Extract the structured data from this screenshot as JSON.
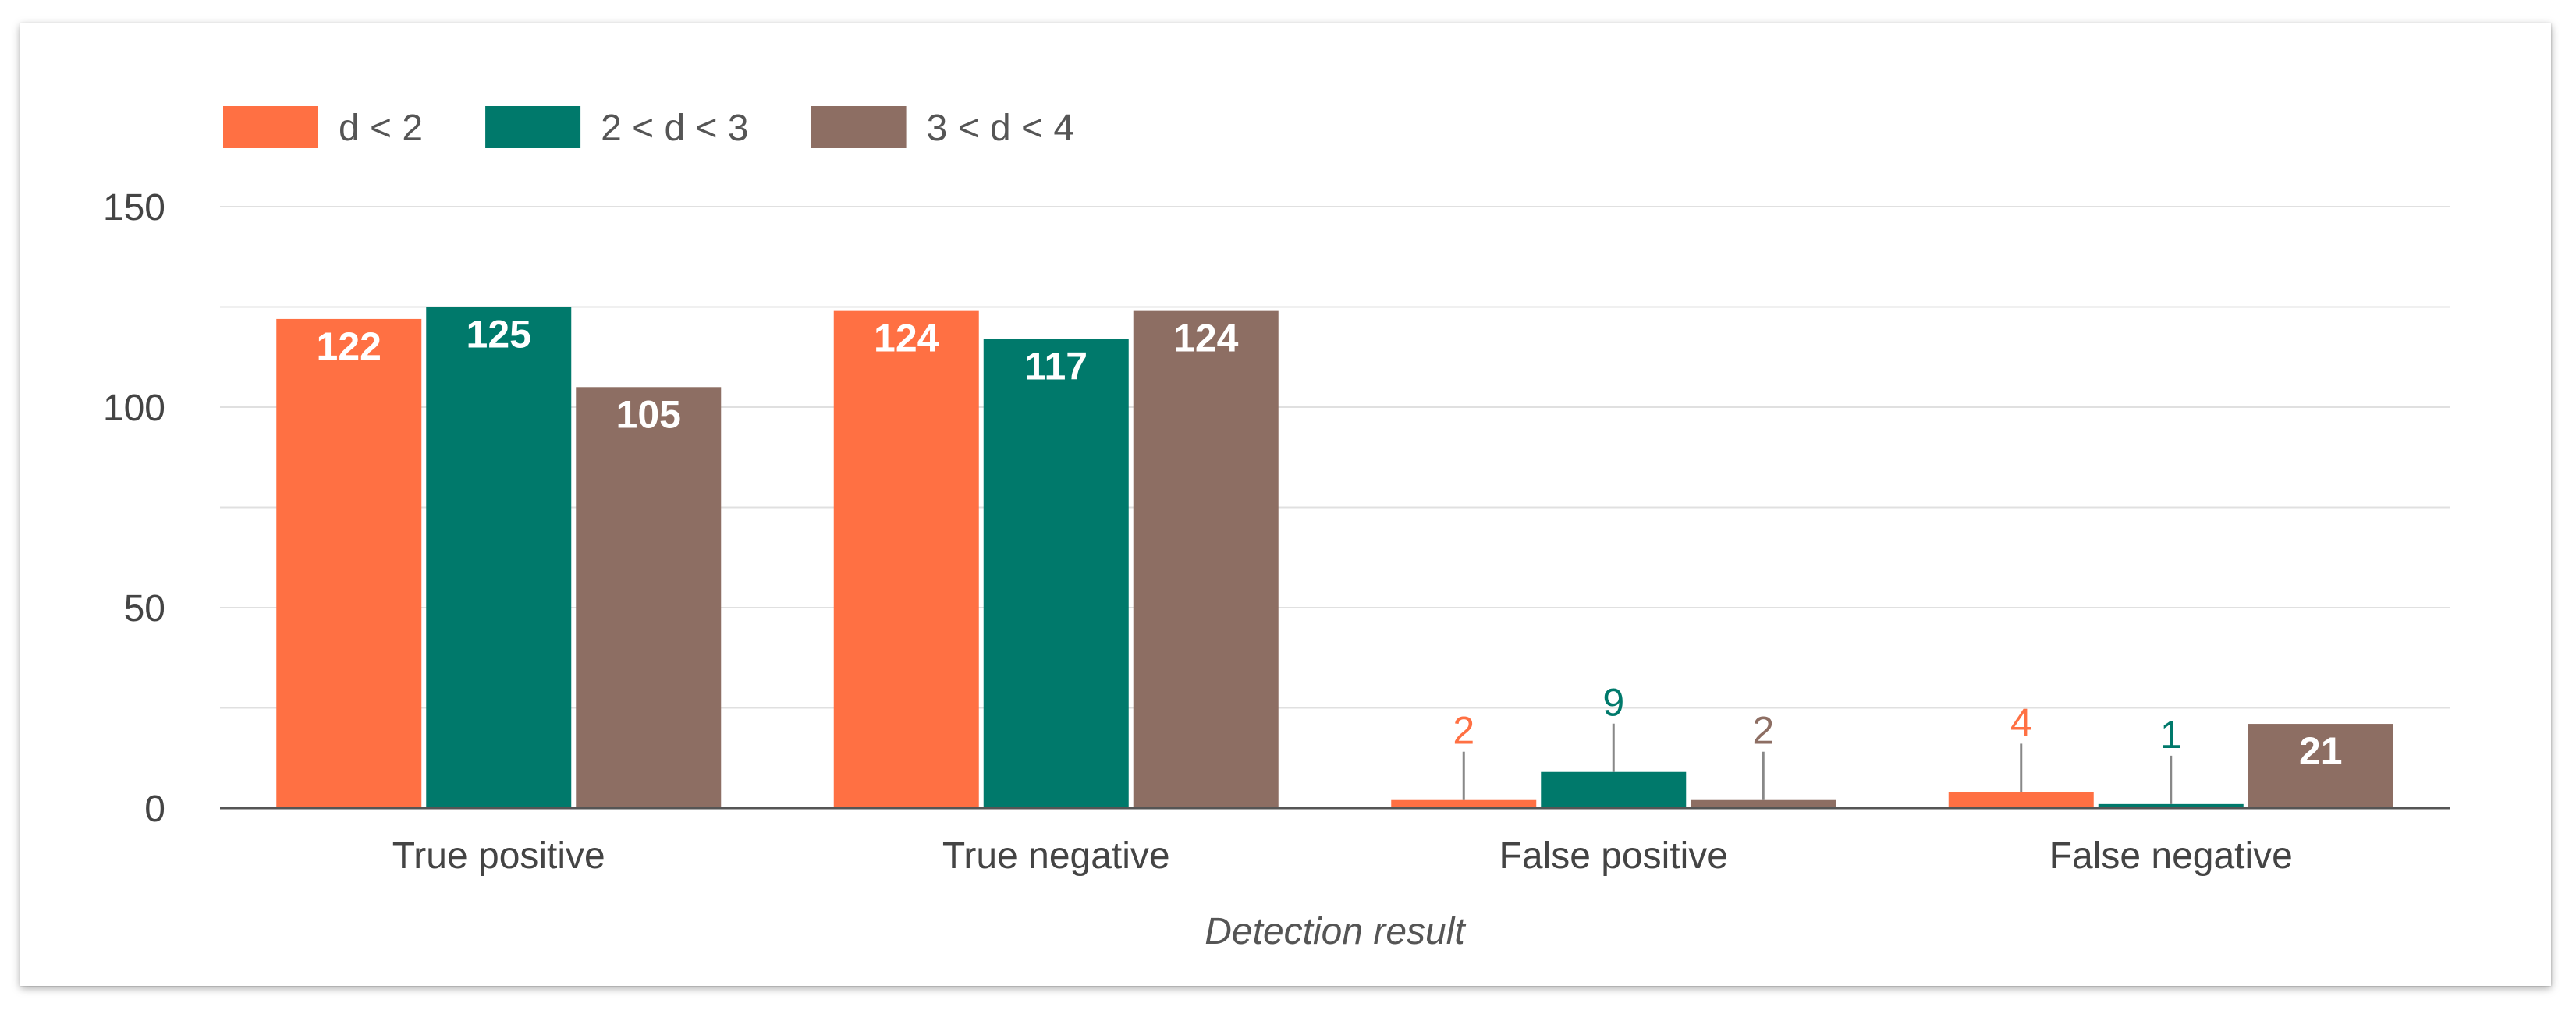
{
  "chart_data": {
    "type": "bar",
    "categories": [
      "True positive",
      "True negative",
      "False positive",
      "False negative"
    ],
    "series": [
      {
        "name": "d < 2",
        "color": "#ff7043",
        "values": [
          122,
          124,
          2,
          4
        ]
      },
      {
        "name": "2 < d < 3",
        "color": "#00796b",
        "values": [
          125,
          117,
          9,
          1
        ]
      },
      {
        "name": "3 < d < 4",
        "color": "#8d6e63",
        "values": [
          105,
          124,
          2,
          21
        ]
      }
    ],
    "title": "",
    "xlabel": "Detection result",
    "ylabel": "",
    "ylim": [
      0,
      150
    ],
    "yticks": [
      "0",
      "50",
      "100",
      "150"
    ],
    "grid": true,
    "legend_position": "top-left",
    "label_threshold": 15,
    "colors": {
      "axis": "#555555",
      "grid": "#e0e0e0",
      "tick_text": "#444444",
      "inside_label": "#ffffff"
    }
  }
}
